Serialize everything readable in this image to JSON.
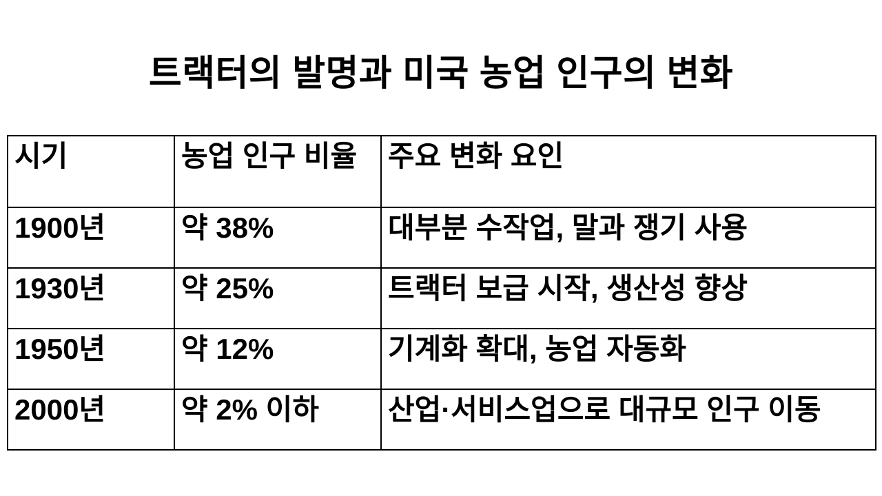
{
  "slide": {
    "title": "트랙터의 발명과 미국 농업 인구의 변화",
    "background_color": "#ffffff",
    "text_color": "#000000",
    "border_color": "#000000"
  },
  "table": {
    "columns": [
      "시기",
      "농업 인구 비율",
      "주요 변화 요인"
    ],
    "rows": [
      [
        "1900년",
        "약 38%",
        "대부분 수작업, 말과 쟁기 사용"
      ],
      [
        "1930년",
        "약 25%",
        "트랙터 보급 시작, 생산성 향상"
      ],
      [
        "1950년",
        "약 12%",
        "기계화 확대, 농업 자동화"
      ],
      [
        "2000년",
        "약 2% 이하",
        "산업·서비스업으로 대규모 인구 이동"
      ]
    ]
  }
}
